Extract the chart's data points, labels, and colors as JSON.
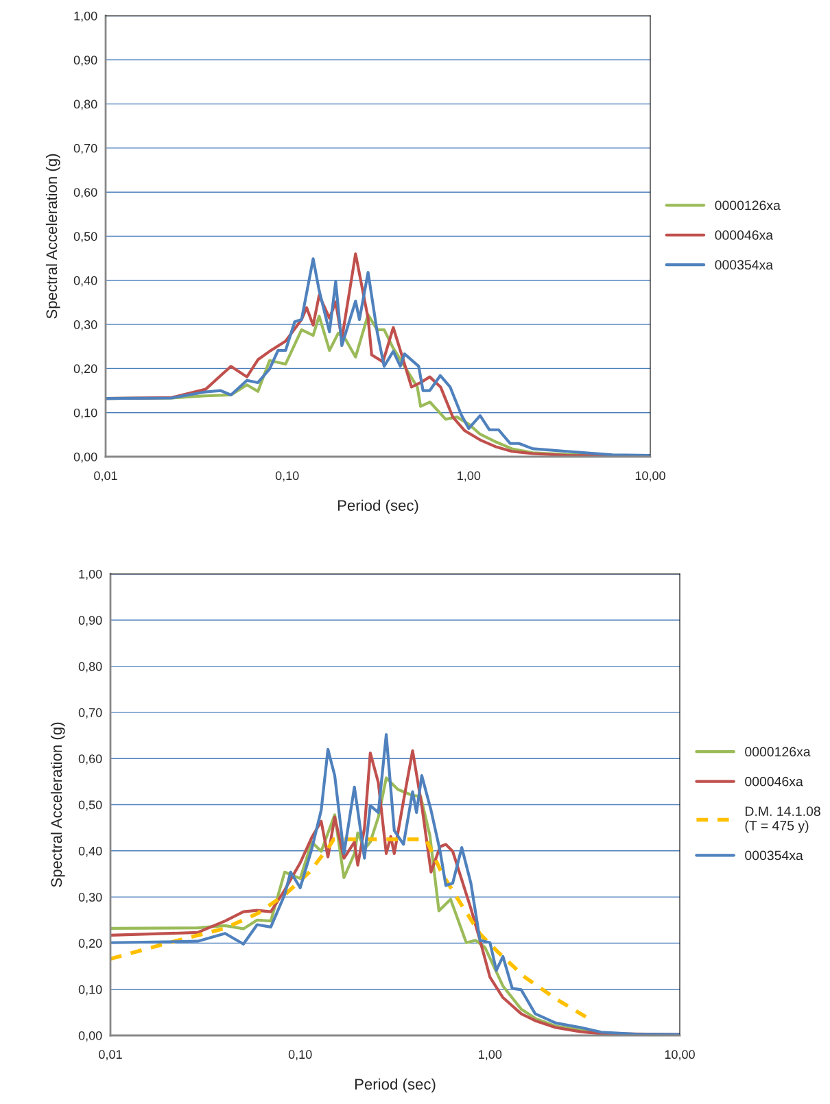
{
  "chart_data": [
    {
      "type": "line",
      "xlabel": "Period (sec)",
      "ylabel": "Spectral Acceleration (g)",
      "log": "x",
      "grid": "y",
      "legend": "right",
      "marker": "none",
      "xlim": [
        0.01,
        10
      ],
      "xticks": [
        {
          "value": 0.01,
          "label": "0,01"
        },
        {
          "value": 0.1,
          "label": "0,10"
        },
        {
          "value": 1,
          "label": "1,00"
        },
        {
          "value": 10,
          "label": "10,00"
        }
      ],
      "ylim": [
        0,
        1
      ],
      "yticks": [
        {
          "value": 0,
          "label": "0,00"
        },
        {
          "value": 0.1,
          "label": "0,10"
        },
        {
          "value": 0.2,
          "label": "0,20"
        },
        {
          "value": 0.3,
          "label": "0,30"
        },
        {
          "value": 0.4,
          "label": "0,40"
        },
        {
          "value": 0.5,
          "label": "0,50"
        },
        {
          "value": 0.6,
          "label": "0,60"
        },
        {
          "value": 0.7,
          "label": "0,70"
        },
        {
          "value": 0.8,
          "label": "0,80"
        },
        {
          "value": 0.9,
          "label": "0,90"
        },
        {
          "value": 1,
          "label": "1,00"
        }
      ],
      "series": [
        {
          "name": "0000126xa",
          "color": "#9bbb59",
          "line_style": "solid",
          "x": [
            0.01,
            0.023,
            0.0356,
            0.049,
            0.06,
            0.069,
            0.08,
            0.098,
            0.12,
            0.139,
            0.15,
            0.171,
            0.191,
            0.209,
            0.238,
            0.279,
            0.313,
            0.342,
            0.384,
            0.521,
            0.543,
            0.611,
            0.746,
            0.862,
            1.0,
            1.156,
            1.42,
            1.73,
            2.25,
            3.47,
            6.2,
            10
          ],
          "values": [
            0.132,
            0.133,
            0.138,
            0.14,
            0.163,
            0.148,
            0.218,
            0.21,
            0.288,
            0.275,
            0.319,
            0.241,
            0.28,
            0.267,
            0.226,
            0.322,
            0.288,
            0.288,
            0.246,
            0.158,
            0.114,
            0.124,
            0.085,
            0.09,
            0.074,
            0.051,
            0.033,
            0.018,
            0.009,
            0.005,
            0.003,
            0.002
          ]
        },
        {
          "name": "000046xa",
          "color": "#c0504d",
          "line_style": "solid",
          "x": [
            0.01,
            0.023,
            0.0356,
            0.043,
            0.049,
            0.06,
            0.069,
            0.08,
            0.098,
            0.12,
            0.128,
            0.139,
            0.15,
            0.171,
            0.185,
            0.2,
            0.238,
            0.279,
            0.292,
            0.337,
            0.384,
            0.431,
            0.484,
            0.543,
            0.61,
            0.7,
            0.817,
            0.95,
            1.156,
            1.42,
            1.73,
            2.25,
            3.47,
            6.2,
            10
          ],
          "values": [
            0.132,
            0.134,
            0.153,
            0.184,
            0.205,
            0.181,
            0.22,
            0.239,
            0.262,
            0.311,
            0.338,
            0.298,
            0.366,
            0.314,
            0.351,
            0.267,
            0.46,
            0.314,
            0.231,
            0.215,
            0.293,
            0.226,
            0.158,
            0.168,
            0.181,
            0.158,
            0.09,
            0.059,
            0.038,
            0.022,
            0.012,
            0.007,
            0.003,
            0.002,
            0.001
          ]
        },
        {
          "name": "000354xa",
          "color": "#4f81bd",
          "line_style": "solid",
          "x": [
            0.01,
            0.023,
            0.0356,
            0.043,
            0.049,
            0.06,
            0.069,
            0.08,
            0.089,
            0.098,
            0.11,
            0.12,
            0.139,
            0.15,
            0.171,
            0.185,
            0.2,
            0.238,
            0.25,
            0.279,
            0.313,
            0.342,
            0.384,
            0.42,
            0.443,
            0.53,
            0.56,
            0.61,
            0.697,
            0.79,
            0.91,
            1.0,
            1.156,
            1.3,
            1.46,
            1.69,
            1.89,
            2.25,
            3.47,
            6.2,
            10
          ],
          "values": [
            0.132,
            0.133,
            0.147,
            0.15,
            0.14,
            0.173,
            0.168,
            0.199,
            0.241,
            0.241,
            0.306,
            0.311,
            0.449,
            0.377,
            0.283,
            0.397,
            0.252,
            0.353,
            0.311,
            0.418,
            0.283,
            0.205,
            0.239,
            0.205,
            0.233,
            0.205,
            0.15,
            0.15,
            0.184,
            0.158,
            0.095,
            0.064,
            0.093,
            0.061,
            0.061,
            0.03,
            0.03,
            0.018,
            0.012,
            0.004,
            0.003
          ]
        }
      ]
    },
    {
      "type": "line",
      "xlabel": "Period (sec)",
      "ylabel": "Spectral Acceleration (g)",
      "log": "x",
      "grid": "y",
      "legend": "right",
      "marker": "none",
      "xlim": [
        0.01,
        10
      ],
      "xticks": [
        {
          "value": 0.01,
          "label": "0,01"
        },
        {
          "value": 0.1,
          "label": "0,10"
        },
        {
          "value": 1,
          "label": "1,00"
        },
        {
          "value": 10,
          "label": "10,00"
        }
      ],
      "ylim": [
        0,
        1
      ],
      "yticks": [
        {
          "value": 0,
          "label": "0,00"
        },
        {
          "value": 0.1,
          "label": "0,10"
        },
        {
          "value": 0.2,
          "label": "0,20"
        },
        {
          "value": 0.3,
          "label": "0,30"
        },
        {
          "value": 0.4,
          "label": "0,40"
        },
        {
          "value": 0.5,
          "label": "0,50"
        },
        {
          "value": 0.6,
          "label": "0,60"
        },
        {
          "value": 0.7,
          "label": "0,70"
        },
        {
          "value": 0.8,
          "label": "0,80"
        },
        {
          "value": 0.9,
          "label": "0,90"
        },
        {
          "value": 1,
          "label": "1,00"
        }
      ],
      "series": [
        {
          "name": "0000126xa",
          "color": "#9bbb59",
          "line_style": "solid",
          "x": [
            0.01,
            0.0288,
            0.0402,
            0.0502,
            0.0593,
            0.07,
            0.0828,
            0.1,
            0.115,
            0.129,
            0.152,
            0.17,
            0.193,
            0.201,
            0.218,
            0.234,
            0.258,
            0.284,
            0.327,
            0.391,
            0.431,
            0.482,
            0.538,
            0.62,
            0.75,
            0.84,
            0.94,
            1.17,
            1.46,
            1.73,
            2.22,
            3.01,
            3.86
          ],
          "values": [
            0.232,
            0.233,
            0.238,
            0.231,
            0.25,
            0.248,
            0.354,
            0.34,
            0.419,
            0.399,
            0.478,
            0.342,
            0.394,
            0.439,
            0.404,
            0.419,
            0.473,
            0.558,
            0.533,
            0.52,
            0.518,
            0.434,
            0.27,
            0.295,
            0.201,
            0.206,
            0.191,
            0.107,
            0.057,
            0.037,
            0.02,
            0.012,
            0.006
          ]
        },
        {
          "name": "000046xa",
          "color": "#c0504d",
          "line_style": "solid",
          "x": [
            0.01,
            0.0288,
            0.0402,
            0.0502,
            0.0593,
            0.07,
            0.0828,
            0.1,
            0.115,
            0.129,
            0.14,
            0.152,
            0.17,
            0.193,
            0.201,
            0.218,
            0.234,
            0.258,
            0.284,
            0.3,
            0.313,
            0.35,
            0.391,
            0.437,
            0.489,
            0.546,
            0.585,
            0.636,
            0.793,
            0.886,
            1.0,
            1.17,
            1.46,
            1.73,
            2.22,
            3.01,
            3.86,
            10
          ],
          "values": [
            0.217,
            0.223,
            0.248,
            0.268,
            0.271,
            0.268,
            0.315,
            0.374,
            0.429,
            0.464,
            0.387,
            0.473,
            0.384,
            0.419,
            0.369,
            0.449,
            0.612,
            0.548,
            0.394,
            0.431,
            0.394,
            0.508,
            0.617,
            0.498,
            0.354,
            0.409,
            0.414,
            0.399,
            0.275,
            0.206,
            0.126,
            0.082,
            0.047,
            0.032,
            0.017,
            0.008,
            0.004,
            0.002
          ]
        },
        {
          "name": "D.M. 14.1.08\n(T = 475 y)",
          "color": "#ffc000",
          "line_style": "dashed",
          "x": [
            0.01,
            0.02,
            0.04,
            0.06,
            0.083,
            0.112,
            0.143,
            0.15,
            0.46,
            0.56,
            0.69,
            0.886,
            1.1,
            1.53,
            2.27,
            3.3
          ],
          "values": [
            0.166,
            0.2,
            0.232,
            0.265,
            0.305,
            0.354,
            0.411,
            0.425,
            0.425,
            0.35,
            0.29,
            0.22,
            0.181,
            0.126,
            0.077,
            0.037
          ]
        },
        {
          "name": "000354xa",
          "color": "#4f81bd",
          "line_style": "solid",
          "x": [
            0.01,
            0.0288,
            0.0402,
            0.0502,
            0.0593,
            0.07,
            0.0828,
            0.089,
            0.1,
            0.115,
            0.129,
            0.14,
            0.152,
            0.17,
            0.193,
            0.201,
            0.218,
            0.234,
            0.258,
            0.284,
            0.313,
            0.35,
            0.391,
            0.41,
            0.437,
            0.489,
            0.546,
            0.585,
            0.636,
            0.71,
            0.793,
            0.886,
            1.0,
            1.08,
            1.17,
            1.31,
            1.46,
            1.73,
            2.22,
            3.01,
            3.86,
            5.85,
            10
          ],
          "values": [
            0.201,
            0.204,
            0.221,
            0.198,
            0.24,
            0.235,
            0.305,
            0.354,
            0.32,
            0.404,
            0.488,
            0.62,
            0.563,
            0.394,
            0.538,
            0.488,
            0.384,
            0.498,
            0.483,
            0.652,
            0.444,
            0.414,
            0.528,
            0.483,
            0.563,
            0.488,
            0.399,
            0.325,
            0.33,
            0.407,
            0.33,
            0.206,
            0.201,
            0.141,
            0.171,
            0.102,
            0.099,
            0.047,
            0.027,
            0.017,
            0.007,
            0.003,
            0.002
          ]
        }
      ]
    }
  ]
}
